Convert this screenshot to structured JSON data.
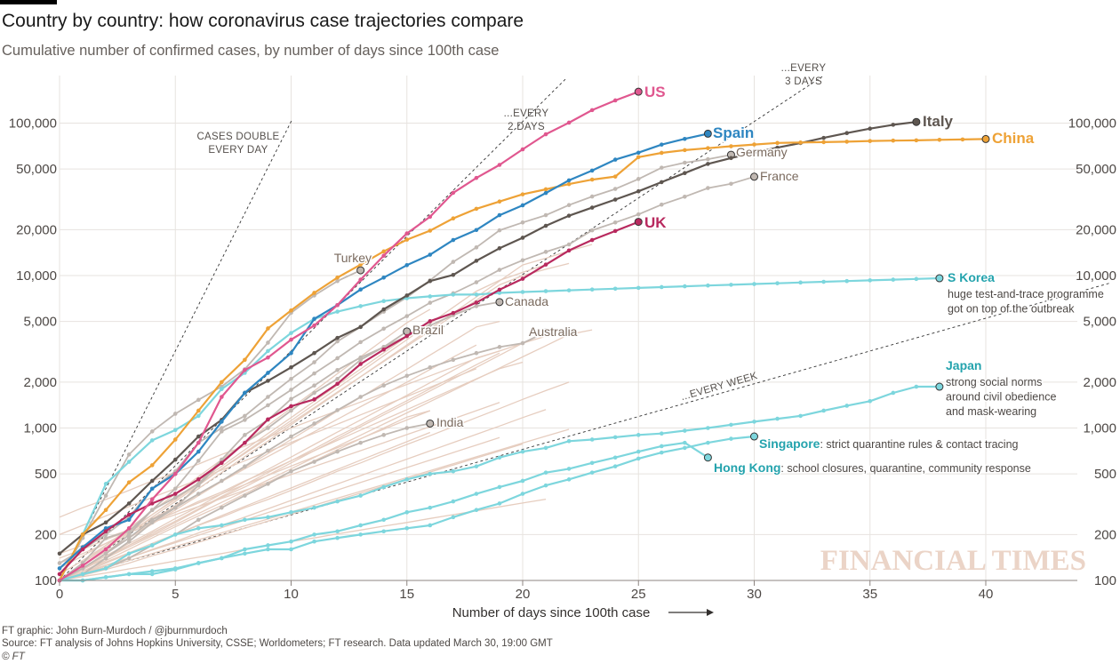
{
  "title": "Country by country: how coronavirus case trajectories compare",
  "subtitle": "Cumulative number of confirmed cases, by number of days since 100th case",
  "footer": {
    "credit": "FT graphic: John Burn-Murdoch / @jburnmurdoch",
    "source": "Source: FT analysis of Johns Hopkins University, CSSE; Worldometers; FT research. Data updated March 30, 19:00 GMT",
    "copyright": "© FT"
  },
  "watermark": "FINANCIAL TIMES",
  "colors": {
    "US": "#e0578f",
    "Spain": "#2e86c1",
    "Italy": "#5e5650",
    "China": "#eea236",
    "UK": "#b8295e",
    "teal": "#7dd6dd",
    "teal_label": "#24a3ad",
    "grey": "#c0b8b2",
    "grey_label": "#7a6a5e",
    "background_lines": "#e6cdbf",
    "grid": "#e7e3df"
  },
  "chart_data": {
    "type": "line",
    "scale": "log",
    "xlabel": "Number of days since 100th case",
    "xlim": [
      0,
      43
    ],
    "ylim": [
      100,
      170000
    ],
    "x_ticks": [
      0,
      5,
      10,
      15,
      20,
      25,
      30,
      35,
      40
    ],
    "y_ticks": [
      100,
      200,
      500,
      1000,
      2000,
      5000,
      10000,
      20000,
      50000,
      100000
    ],
    "y_tick_labels": [
      "100",
      "200",
      "500",
      "1,000",
      "2,000",
      "5,000",
      "10,000",
      "20,000",
      "50,000",
      "100,000"
    ],
    "reference_lines": [
      {
        "label_lines": [
          "CASES DOUBLE",
          "EVERY DAY"
        ],
        "doubling_days": 1
      },
      {
        "label_lines": [
          "...EVERY",
          "2 DAYS"
        ],
        "doubling_days": 2
      },
      {
        "label_lines": [
          "...EVERY",
          "3 DAYS"
        ],
        "doubling_days": 3
      },
      {
        "label_lines": [
          "...EVERY WEEK"
        ],
        "doubling_days": 7
      }
    ],
    "series": [
      {
        "name": "US",
        "style": "US",
        "label_style": "bold",
        "values": [
          100,
          125,
          160,
          220,
          340,
          500,
          800,
          1600,
          2400,
          2900,
          3800,
          4700,
          6400,
          9400,
          13500,
          18900,
          24300,
          34900,
          43700,
          53200,
          67300,
          84500,
          100700,
          121700,
          140900,
          160700
        ]
      },
      {
        "name": "Spain",
        "style": "Spain",
        "label_style": "bold",
        "values": [
          120,
          165,
          220,
          250,
          400,
          500,
          700,
          1100,
          1700,
          2300,
          3100,
          5200,
          6400,
          8100,
          9700,
          11700,
          13700,
          17100,
          19900,
          24900,
          28900,
          34800,
          42100,
          48800,
          57600,
          64000,
          72300,
          78800,
          85200
        ]
      },
      {
        "name": "Italy",
        "style": "Italy",
        "label_style": "bold",
        "values": [
          150,
          200,
          240,
          320,
          450,
          620,
          880,
          1130,
          1700,
          2040,
          2500,
          3100,
          3900,
          4600,
          6000,
          7400,
          9200,
          10100,
          12500,
          15100,
          17700,
          21200,
          24700,
          27900,
          31500,
          35700,
          41000,
          47000,
          54000,
          59000,
          64000,
          69000,
          74000,
          80000,
          86000,
          92000,
          97500,
          101700
        ]
      },
      {
        "name": "China",
        "style": "China",
        "label_style": "bold",
        "values": [
          100,
          200,
          290,
          440,
          570,
          840,
          1300,
          2000,
          2800,
          4500,
          5900,
          7700,
          9700,
          11800,
          14400,
          17200,
          19700,
          23700,
          27400,
          30600,
          34100,
          36800,
          39800,
          42600,
          44600,
          59800,
          63800,
          66500,
          68500,
          70500,
          72400,
          74100,
          74600,
          75000,
          75500,
          76300,
          76800,
          77100,
          77700,
          78100,
          78600
        ]
      },
      {
        "name": "UK",
        "style": "UK",
        "label_style": "bold",
        "values": [
          110,
          160,
          210,
          270,
          320,
          370,
          460,
          590,
          800,
          1140,
          1390,
          1540,
          1950,
          2630,
          3270,
          4010,
          5020,
          5680,
          6650,
          8080,
          9530,
          11800,
          14600,
          17100,
          19600,
          22500
        ]
      },
      {
        "name": "S Korea",
        "style": "teal",
        "label_style": "bold",
        "note_lines": [
          "huge test-and-trace programme",
          "got on top of the outbreak"
        ],
        "values": [
          100,
          200,
          430,
          600,
          830,
          970,
          1200,
          1800,
          2300,
          3200,
          4200,
          5200,
          5800,
          6300,
          6800,
          7100,
          7300,
          7500,
          7500,
          7700,
          7800,
          7900,
          8000,
          8100,
          8200,
          8300,
          8400,
          8500,
          8600,
          8700,
          8800,
          8900,
          9000,
          9100,
          9200,
          9300,
          9400,
          9500,
          9600
        ]
      },
      {
        "name": "Japan",
        "style": "teal",
        "label_style": "bold",
        "note_lines": [
          "strong social norms",
          "around civil obedience",
          "and mask-wearing"
        ],
        "values": [
          100,
          110,
          120,
          150,
          170,
          200,
          220,
          230,
          250,
          260,
          280,
          300,
          330,
          360,
          410,
          460,
          500,
          520,
          560,
          640,
          700,
          740,
          820,
          840,
          870,
          900,
          920,
          960,
          1000,
          1050,
          1100,
          1150,
          1200,
          1300,
          1400,
          1500,
          1700,
          1866,
          1866
        ]
      },
      {
        "name": "Singapore",
        "style": "teal",
        "label_style": "bold",
        "note": ": strict quarantine rules & contact tracing",
        "values": [
          100,
          100,
          105,
          110,
          110,
          118,
          130,
          140,
          150,
          160,
          160,
          180,
          190,
          200,
          210,
          220,
          230,
          260,
          290,
          320,
          370,
          420,
          460,
          510,
          560,
          630,
          690,
          740,
          800,
          850,
          880
        ]
      },
      {
        "name": "Hong Kong",
        "style": "teal",
        "label_style": "bold",
        "note": ": school closures, quarantine, community response",
        "values": [
          100,
          100,
          105,
          110,
          115,
          120,
          130,
          140,
          160,
          170,
          180,
          200,
          210,
          230,
          250,
          280,
          300,
          330,
          370,
          410,
          450,
          510,
          540,
          590,
          640,
          700,
          760,
          800,
          640
        ]
      },
      {
        "name": "Germany",
        "style": "grey",
        "label_style": "normal",
        "values": [
          130,
          160,
          200,
          260,
          400,
          520,
          800,
          1000,
          1200,
          1600,
          2100,
          2700,
          3700,
          4600,
          5800,
          7200,
          9300,
          12300,
          15300,
          19800,
          22300,
          24900,
          29000,
          33000,
          37000,
          43000,
          51000,
          55000,
          58000,
          62000
        ]
      },
      {
        "name": "France",
        "style": "grey",
        "label_style": "normal",
        "values": [
          100,
          130,
          190,
          210,
          290,
          400,
          610,
          950,
          1130,
          1410,
          1780,
          2280,
          2870,
          3660,
          4480,
          5420,
          6630,
          7650,
          9040,
          10900,
          12600,
          14300,
          16000,
          19800,
          22300,
          25200,
          29200,
          32900,
          37500,
          40000,
          44500
        ]
      },
      {
        "name": "Turkey",
        "style": "grey",
        "label_style": "normal",
        "values": [
          100,
          190,
          360,
          670,
          950,
          1240,
          1530,
          1870,
          2430,
          3630,
          5700,
          7400,
          9200,
          10827
        ]
      },
      {
        "name": "Canada",
        "style": "grey",
        "label_style": "normal",
        "values": [
          100,
          110,
          140,
          180,
          240,
          300,
          420,
          600,
          800,
          1000,
          1300,
          1700,
          2100,
          2800,
          3400,
          4000,
          4700,
          5500,
          6300,
          6700
        ]
      },
      {
        "name": "Brazil",
        "style": "grey",
        "label_style": "normal",
        "values": [
          100,
          120,
          150,
          200,
          290,
          350,
          430,
          620,
          900,
          1130,
          1550,
          1900,
          2400,
          2900,
          3400,
          4300
        ]
      },
      {
        "name": "Australia",
        "style": "grey",
        "label_style": "normal",
        "values": [
          100,
          120,
          150,
          190,
          250,
          300,
          370,
          450,
          560,
          710,
          880,
          1070,
          1310,
          1600,
          1900,
          2200,
          2500,
          2800,
          3100,
          3400,
          3600,
          4250
        ]
      },
      {
        "name": "India",
        "style": "grey",
        "label_style": "normal",
        "values": [
          100,
          110,
          120,
          140,
          170,
          200,
          250,
          300,
          360,
          430,
          520,
          600,
          700,
          800,
          900,
          1000,
          1070
        ]
      }
    ],
    "background_series": [
      [
        100,
        120,
        150,
        190,
        240,
        310,
        400,
        510,
        650,
        820,
        1050,
        1340,
        1700,
        2170,
        2760,
        3510,
        4470,
        5690,
        7240,
        9210,
        11730,
        13000,
        14500,
        16000
      ],
      [
        100,
        118,
        140,
        166,
        196,
        232,
        275,
        325,
        385,
        456,
        540,
        640,
        757,
        897,
        1062,
        1257,
        1489,
        1763,
        2088,
        2472,
        2927,
        3466,
        4104,
        4400
      ],
      [
        110,
        135,
        170,
        215,
        270,
        340,
        430,
        540,
        680,
        860,
        1080,
        1360,
        1720,
        2170,
        2730,
        3440,
        4340,
        5470,
        6890,
        8680,
        10000,
        11000,
        12000
      ],
      [
        100,
        125,
        160,
        205,
        260,
        330,
        420,
        540,
        690,
        880,
        1120,
        1430,
        1830,
        2330,
        2980,
        3800,
        4850,
        6190,
        7900,
        9300,
        10500,
        11800
      ],
      [
        260,
        300,
        340,
        390,
        450,
        510,
        580,
        670,
        760,
        870,
        1000,
        1140,
        1300,
        1480,
        1690,
        1930,
        2200,
        2510,
        2860,
        3200,
        3600,
        4000
      ],
      [
        100,
        112,
        130,
        150,
        170,
        200,
        230,
        260,
        300,
        340,
        390,
        450,
        520,
        590,
        680,
        780,
        890,
        1020,
        1170,
        1340,
        1540,
        1760,
        2000
      ],
      [
        130,
        150,
        175,
        205,
        240,
        280,
        330,
        380,
        450,
        520,
        610,
        710,
        830,
        970,
        1130,
        1320,
        1540,
        1800,
        2100,
        2450,
        2700
      ],
      [
        100,
        115,
        135,
        160,
        190,
        225,
        265,
        310,
        370,
        440,
        520,
        610,
        720,
        850,
        1000,
        1180,
        1300
      ],
      [
        100,
        130,
        165,
        210,
        270,
        345,
        440,
        560,
        720,
        920,
        1170,
        1500,
        1910,
        2440,
        3120,
        3980,
        4800
      ],
      [
        100,
        108,
        118,
        130,
        145,
        160,
        178,
        198,
        220,
        245,
        272,
        302,
        336,
        374,
        416,
        462,
        514,
        571,
        635,
        706,
        785
      ],
      [
        200,
        230,
        265,
        305,
        350,
        400,
        460,
        530,
        610,
        700,
        805,
        925,
        1060,
        1220,
        1400,
        1610,
        1850,
        2130,
        2450
      ],
      [
        100,
        120,
        145,
        175,
        210,
        255,
        305,
        370,
        445,
        535,
        645,
        780,
        940,
        1130,
        1360,
        1640,
        1980,
        2390,
        2880,
        3200
      ],
      [
        100,
        110,
        125,
        140,
        160,
        180,
        205,
        230,
        260,
        295,
        335,
        380,
        430,
        487,
        552,
        625,
        708,
        802,
        909,
        1030,
        1170,
        1320
      ],
      [
        100,
        125,
        155,
        190,
        235,
        290,
        360,
        445,
        550,
        680,
        840,
        1040,
        1290,
        1590,
        1970,
        2430,
        3010,
        3720,
        4600,
        5000
      ],
      [
        150,
        170,
        190,
        215,
        240,
        270,
        305,
        345,
        390,
        440,
        495,
        560,
        630,
        710,
        800,
        905,
        1020,
        1150,
        1300,
        1470
      ],
      [
        100,
        106,
        112,
        119,
        126,
        134,
        142,
        150,
        160,
        170,
        180,
        190,
        202,
        214,
        227,
        240,
        255,
        270,
        286,
        304,
        322,
        341
      ],
      [
        100,
        120,
        140,
        170,
        200,
        240,
        290,
        350,
        410,
        490,
        590,
        710,
        850,
        1020,
        1220,
        1460,
        1750,
        2100,
        2500,
        3000,
        3600,
        4300
      ],
      [
        100,
        115,
        132,
        152,
        175,
        201,
        231,
        266,
        306,
        352,
        404,
        465,
        535,
        615,
        707,
        813,
        935
      ],
      [
        120,
        145,
        175,
        210,
        255,
        305,
        370,
        445,
        540,
        650,
        785,
        945,
        1140,
        1380,
        1660,
        2000,
        2420,
        2920,
        3500
      ],
      [
        100,
        110,
        122,
        135,
        150,
        167,
        185,
        205,
        228,
        253,
        281,
        312,
        346,
        384,
        426,
        473,
        525,
        583,
        647,
        718,
        797,
        885,
        980
      ],
      [
        100,
        130,
        170,
        220,
        285,
        370,
        480,
        620,
        800,
        1040,
        1350,
        1750,
        2270,
        2940,
        3800,
        4900,
        6000
      ],
      [
        100,
        112,
        126,
        141,
        158,
        177,
        198,
        222,
        249,
        279,
        312,
        350,
        392,
        439,
        491,
        550,
        616,
        690,
        773,
        866
      ],
      [
        140,
        160,
        185,
        212,
        243,
        280,
        322,
        370,
        425,
        489,
        562,
        646,
        743,
        854,
        982,
        1130,
        1300
      ],
      [
        100,
        120,
        145,
        170,
        205,
        245,
        295,
        355,
        425,
        510,
        610,
        730,
        880,
        1050,
        1260,
        1510,
        1810,
        2170,
        2600,
        3100
      ]
    ]
  }
}
